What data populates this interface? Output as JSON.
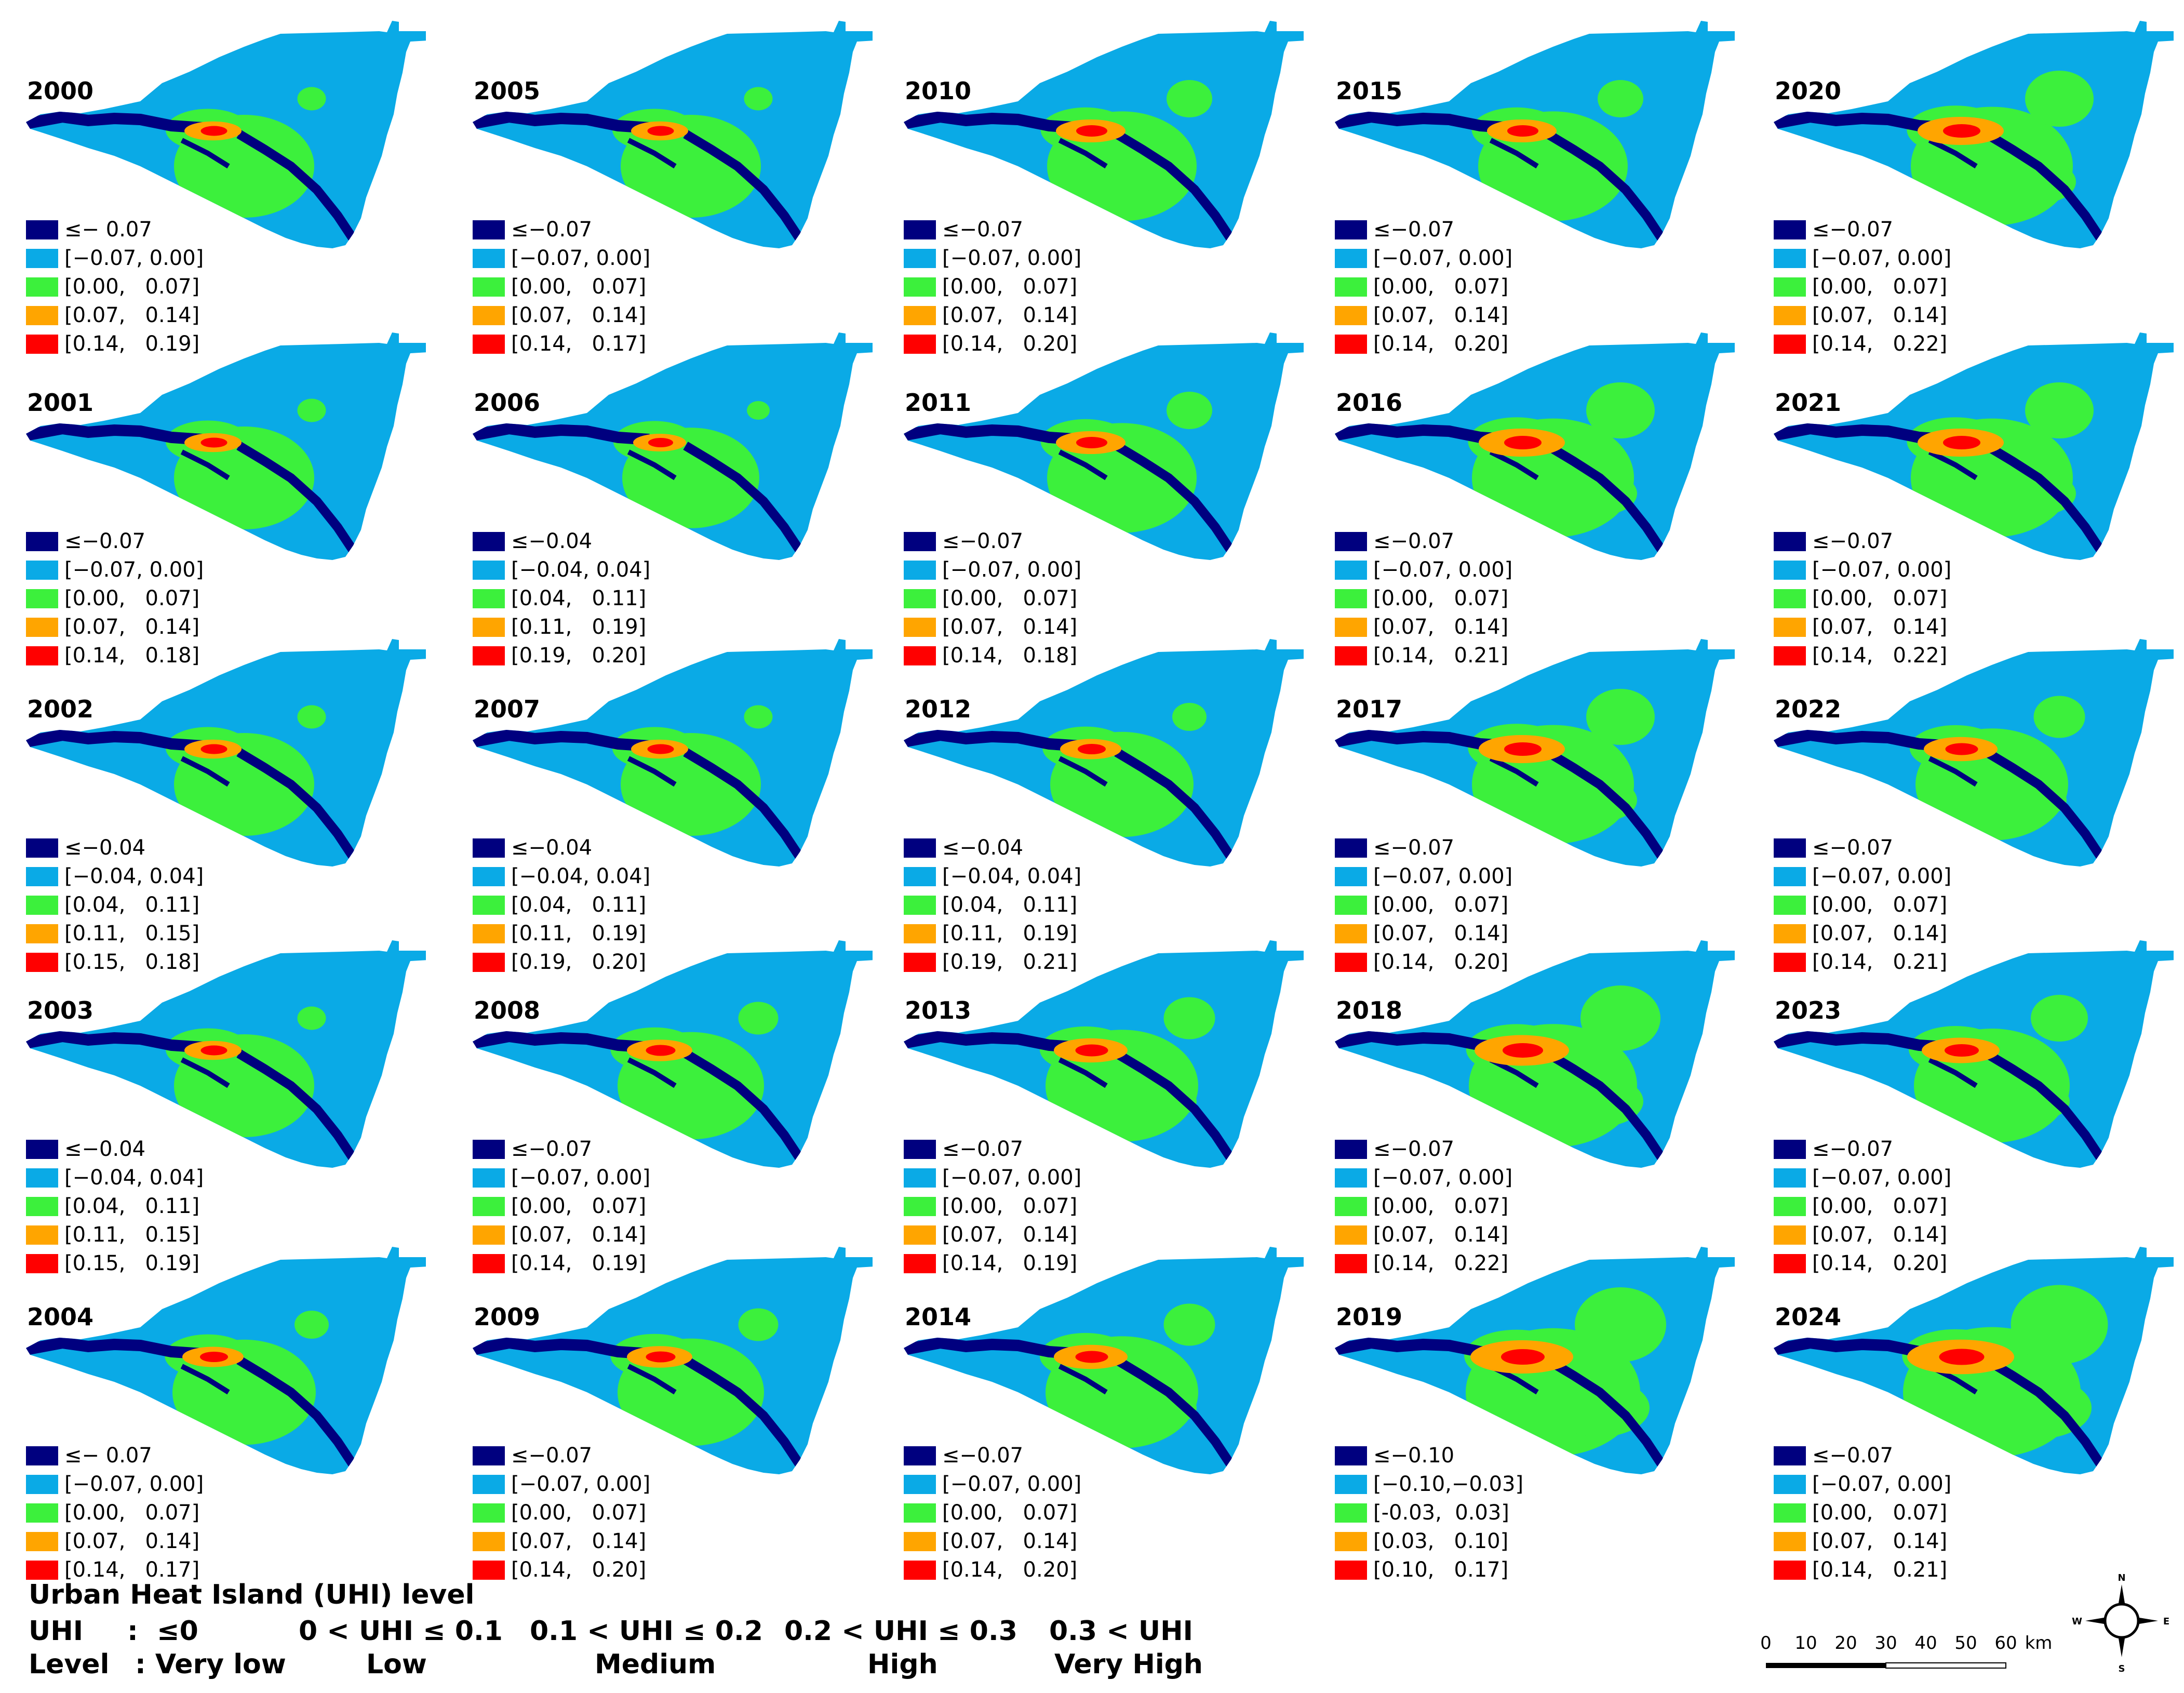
{
  "colors": {
    "very_low": "#00007f",
    "low": "#0aaae6",
    "medium": "#3cf03c",
    "high": "#ffa500",
    "very_high": "#ff0000"
  },
  "panels": [
    {
      "year": "2000",
      "legend": [
        "≤− 0.07",
        "[−0.07, 0.00]",
        "[0.00,   0.07]",
        "[0.07,   0.14]",
        "[0.14,   0.19]"
      ],
      "uhi": 0.25
    },
    {
      "year": "2005",
      "legend": [
        "≤−0.07",
        "[−0.07, 0.00]",
        "[0.00,   0.07]",
        "[0.07,   0.14]",
        "[0.14,   0.17]"
      ],
      "uhi": 0.25
    },
    {
      "year": "2010",
      "legend": [
        "≤−0.07",
        "[−0.07, 0.00]",
        "[0.00,   0.07]",
        "[0.07,   0.14]",
        "[0.14,   0.20]"
      ],
      "uhi": 0.4
    },
    {
      "year": "2015",
      "legend": [
        "≤−0.07",
        "[−0.07, 0.00]",
        "[0.00,   0.07]",
        "[0.07,   0.14]",
        "[0.14,   0.20]"
      ],
      "uhi": 0.4
    },
    {
      "year": "2020",
      "legend": [
        "≤−0.07",
        "[−0.07, 0.00]",
        "[0.00,   0.07]",
        "[0.07,   0.14]",
        "[0.14,   0.22]"
      ],
      "uhi": 0.6
    },
    {
      "year": "2001",
      "legend": [
        "≤−0.07",
        "[−0.07, 0.00]",
        "[0.00,   0.07]",
        "[0.07,   0.14]",
        "[0.14,   0.18]"
      ],
      "uhi": 0.25
    },
    {
      "year": "2006",
      "legend": [
        "≤−0.04",
        "[−0.04, 0.04]",
        "[0.04,   0.11]",
        "[0.11,   0.19]",
        "[0.19,   0.20]"
      ],
      "uhi": 0.2
    },
    {
      "year": "2011",
      "legend": [
        "≤−0.07",
        "[−0.07, 0.00]",
        "[0.00,   0.07]",
        "[0.07,   0.14]",
        "[0.14,   0.18]"
      ],
      "uhi": 0.4
    },
    {
      "year": "2016",
      "legend": [
        "≤−0.07",
        "[−0.07, 0.00]",
        "[0.00,   0.07]",
        "[0.07,   0.14]",
        "[0.14,   0.21]"
      ],
      "uhi": 0.6
    },
    {
      "year": "2021",
      "legend": [
        "≤−0.07",
        "[−0.07, 0.00]",
        "[0.00,   0.07]",
        "[0.07,   0.14]",
        "[0.14,   0.22]"
      ],
      "uhi": 0.6
    },
    {
      "year": "2002",
      "legend": [
        "≤−0.04",
        "[−0.04, 0.04]",
        "[0.04,   0.11]",
        "[0.11,   0.15]",
        "[0.15,   0.18]"
      ],
      "uhi": 0.25
    },
    {
      "year": "2007",
      "legend": [
        "≤−0.04",
        "[−0.04, 0.04]",
        "[0.04,   0.11]",
        "[0.11,   0.19]",
        "[0.19,   0.20]"
      ],
      "uhi": 0.25
    },
    {
      "year": "2012",
      "legend": [
        "≤−0.04",
        "[−0.04, 0.04]",
        "[0.04,   0.11]",
        "[0.11,   0.19]",
        "[0.19,   0.21]"
      ],
      "uhi": 0.3
    },
    {
      "year": "2017",
      "legend": [
        "≤−0.07",
        "[−0.07, 0.00]",
        "[0.00,   0.07]",
        "[0.07,   0.14]",
        "[0.14,   0.20]"
      ],
      "uhi": 0.6
    },
    {
      "year": "2022",
      "legend": [
        "≤−0.07",
        "[−0.07, 0.00]",
        "[0.00,   0.07]",
        "[0.07,   0.14]",
        "[0.14,   0.21]"
      ],
      "uhi": 0.45
    },
    {
      "year": "2003",
      "legend": [
        "≤−0.04",
        "[−0.04, 0.04]",
        "[0.04,   0.11]",
        "[0.11,   0.15]",
        "[0.15,   0.19]"
      ],
      "uhi": 0.25
    },
    {
      "year": "2008",
      "legend": [
        "≤−0.07",
        "[−0.07, 0.00]",
        "[0.00,   0.07]",
        "[0.07,   0.14]",
        "[0.14,   0.19]"
      ],
      "uhi": 0.35
    },
    {
      "year": "2013",
      "legend": [
        "≤−0.07",
        "[−0.07, 0.00]",
        "[0.00,   0.07]",
        "[0.07,   0.14]",
        "[0.14,   0.19]"
      ],
      "uhi": 0.45
    },
    {
      "year": "2018",
      "legend": [
        "≤−0.07",
        "[−0.07, 0.00]",
        "[0.00,   0.07]",
        "[0.07,   0.14]",
        "[0.14,   0.22]"
      ],
      "uhi": 0.7
    },
    {
      "year": "2023",
      "legend": [
        "≤−0.07",
        "[−0.07, 0.00]",
        "[0.00,   0.07]",
        "[0.07,   0.14]",
        "[0.14,   0.20]"
      ],
      "uhi": 0.5
    },
    {
      "year": "2004",
      "legend": [
        "≤− 0.07",
        "[−0.07, 0.00]",
        "[0.00,   0.07]",
        "[0.07,   0.14]",
        "[0.14,   0.17]"
      ],
      "uhi": 0.3
    },
    {
      "year": "2009",
      "legend": [
        "≤−0.07",
        "[−0.07, 0.00]",
        "[0.00,   0.07]",
        "[0.07,   0.14]",
        "[0.14,   0.20]"
      ],
      "uhi": 0.35
    },
    {
      "year": "2014",
      "legend": [
        "≤−0.07",
        "[−0.07, 0.00]",
        "[0.00,   0.07]",
        "[0.07,   0.14]",
        "[0.14,   0.20]"
      ],
      "uhi": 0.45
    },
    {
      "year": "2019",
      "legend": [
        "≤−0.10",
        "[−0.10,−0.03]",
        "[-0.03,  0.03]",
        "[0.03,   0.10]",
        "[0.10,   0.17]"
      ],
      "uhi": 0.8
    },
    {
      "year": "2024",
      "legend": [
        "≤−0.07",
        "[−0.07, 0.00]",
        "[0.00,   0.07]",
        "[0.07,   0.14]",
        "[0.14,   0.21]"
      ],
      "uhi": 0.85
    }
  ],
  "footer": {
    "title": "Urban Heat Island (UHI) level",
    "uhi_label": "UHI",
    "level_label": "Level",
    "classes": [
      {
        "range": ":  ≤0",
        "level": ": Very low"
      },
      {
        "range": "0 < UHI ≤ 0.1",
        "level": "Low"
      },
      {
        "range": "0.1 < UHI ≤ 0.2",
        "level": "Medium"
      },
      {
        "range": "0.2 < UHI ≤ 0.3",
        "level": "High"
      },
      {
        "range": "0.3 < UHI",
        "level": "Very High"
      }
    ]
  },
  "scalebar": {
    "ticks": [
      "0",
      "10",
      "20",
      "30",
      "40",
      "50",
      "60"
    ],
    "unit": "km"
  },
  "compass": {
    "n": "N",
    "s": "S",
    "e": "E",
    "w": "W"
  }
}
